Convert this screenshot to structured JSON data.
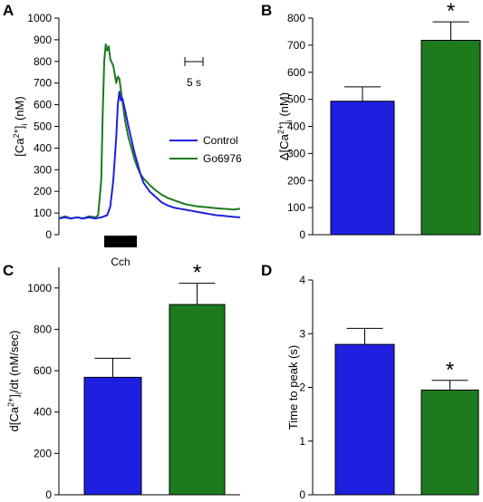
{
  "colors": {
    "control": "#1f1fe0",
    "go6976": "#1d7a1d",
    "axis": "#000000"
  },
  "chart_data": [
    {
      "id": "A",
      "panel_label": "A",
      "type": "line",
      "ylabel_parts": [
        "[Ca",
        "2+",
        "]",
        "i",
        " (nM)"
      ],
      "ylim": [
        0,
        1000
      ],
      "yticks": [
        0,
        100,
        200,
        300,
        400,
        500,
        600,
        700,
        800,
        900,
        1000
      ],
      "xlim": [
        0,
        60
      ],
      "scale_bar_label": "5 s",
      "scale_bar_seconds": 5,
      "stimulus_label": "Cch",
      "stimulus_interval": [
        11,
        17
      ],
      "legend_position": "right",
      "series": [
        {
          "name": "Control",
          "color_key": "control",
          "x": [
            0,
            2,
            4,
            6,
            8,
            10,
            12,
            14,
            16,
            17,
            18,
            19,
            19.5,
            20,
            20.5,
            21,
            22,
            23,
            24,
            25,
            26,
            27,
            28,
            29,
            30,
            32,
            34,
            36,
            38,
            40,
            42,
            44,
            46,
            48,
            50,
            52,
            54,
            56,
            58,
            60
          ],
          "y": [
            75,
            80,
            75,
            80,
            75,
            80,
            75,
            80,
            90,
            130,
            250,
            450,
            600,
            660,
            620,
            630,
            570,
            500,
            440,
            380,
            330,
            280,
            240,
            220,
            200,
            175,
            150,
            135,
            125,
            120,
            115,
            110,
            105,
            100,
            95,
            90,
            88,
            85,
            82,
            80
          ]
        },
        {
          "name": "Go6976",
          "color_key": "go6976",
          "x": [
            0,
            2,
            4,
            6,
            8,
            10,
            12,
            13,
            14,
            14.5,
            15,
            15.5,
            16,
            16.5,
            17,
            18,
            19,
            19.5,
            20,
            21,
            22,
            23,
            24,
            25,
            26,
            27,
            28,
            29,
            30,
            32,
            34,
            36,
            38,
            40,
            42,
            44,
            46,
            48,
            50,
            52,
            54,
            56,
            58,
            60
          ],
          "y": [
            75,
            85,
            75,
            80,
            75,
            85,
            80,
            90,
            250,
            550,
            800,
            880,
            850,
            870,
            810,
            780,
            700,
            730,
            720,
            620,
            520,
            450,
            400,
            350,
            310,
            280,
            260,
            245,
            230,
            205,
            185,
            170,
            160,
            150,
            140,
            135,
            130,
            128,
            125,
            122,
            120,
            118,
            116,
            120
          ]
        }
      ]
    },
    {
      "id": "B",
      "panel_label": "B",
      "type": "bar",
      "ylabel_parts": [
        "Δ[Ca",
        "2+",
        "]",
        "i",
        " (nM)"
      ],
      "ylim": [
        0,
        800
      ],
      "yticks": [
        0,
        100,
        200,
        300,
        400,
        500,
        600,
        700,
        800
      ],
      "series": [
        {
          "name": "Control",
          "color_key": "control",
          "value": 493,
          "error": 53
        },
        {
          "name": "Go6976",
          "color_key": "go6976",
          "value": 718,
          "error": 68
        }
      ],
      "significance": [
        false,
        true
      ],
      "significance_marker": "*"
    },
    {
      "id": "C",
      "panel_label": "C",
      "type": "bar",
      "ylabel_parts": [
        "d[Ca",
        "2+",
        "]",
        "i",
        "/dt (nM/sec)"
      ],
      "ylim": [
        0,
        1100
      ],
      "yticks": [
        0,
        200,
        400,
        600,
        800,
        1000
      ],
      "series": [
        {
          "name": "Control",
          "color_key": "control",
          "value": 568,
          "error": 92
        },
        {
          "name": "Go6976",
          "color_key": "go6976",
          "value": 920,
          "error": 103
        }
      ],
      "significance": [
        false,
        true
      ],
      "significance_marker": "*"
    },
    {
      "id": "D",
      "panel_label": "D",
      "type": "bar",
      "ylabel_parts": [
        "Time to peak (s)"
      ],
      "ylim": [
        0,
        4
      ],
      "yticks": [
        0,
        1,
        2,
        3,
        4
      ],
      "series": [
        {
          "name": "Control",
          "color_key": "control",
          "value": 2.8,
          "error": 0.3
        },
        {
          "name": "Go6976",
          "color_key": "go6976",
          "value": 1.95,
          "error": 0.18
        }
      ],
      "significance": [
        false,
        true
      ],
      "significance_marker": "*"
    }
  ]
}
